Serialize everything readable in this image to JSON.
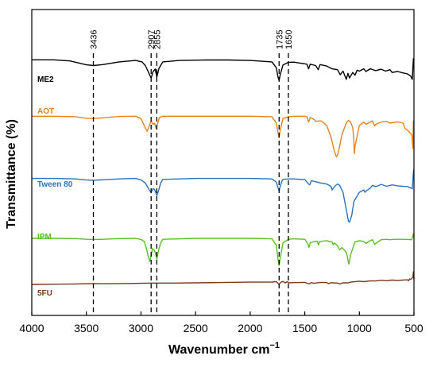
{
  "chart_data": {
    "type": "line",
    "xlabel": "Wavenumber cm",
    "xlabel_superscript": "−1",
    "ylabel": "Transmittance (%)",
    "xlim": [
      4000,
      500
    ],
    "x_reversed": true,
    "y_ticks_shown": false,
    "grid": false,
    "legend": "none; series names printed at left of each trace",
    "x_ticks": [
      {
        "value": 4000,
        "label": "4000"
      },
      {
        "value": 3500,
        "label": "3500"
      },
      {
        "value": 3000,
        "label": "3000"
      },
      {
        "value": 2500,
        "label": "2500"
      },
      {
        "value": 2000,
        "label": "2000"
      },
      {
        "value": 1500,
        "label": "1500"
      },
      {
        "value": 1000,
        "label": "1000"
      },
      {
        "value": 500,
        "label": "500"
      }
    ],
    "reference_lines": [
      {
        "x": 3436,
        "label": "3436"
      },
      {
        "x": 2907,
        "label": "2907"
      },
      {
        "x": 2855,
        "label": "2855"
      },
      {
        "x": 1735,
        "label": "1735"
      },
      {
        "x": 1650,
        "label": "1650"
      }
    ],
    "series": [
      {
        "name": "ME2",
        "color": "#000000",
        "x": [
          4000,
          3800,
          3650,
          3500,
          3436,
          3350,
          3200,
          3050,
          2990,
          2960,
          2930,
          2907,
          2890,
          2870,
          2855,
          2835,
          2800,
          2650,
          2400,
          2200,
          2000,
          1800,
          1760,
          1745,
          1735,
          1725,
          1700,
          1650,
          1600,
          1550,
          1480,
          1465,
          1450,
          1400,
          1377,
          1360,
          1300,
          1250,
          1200,
          1175,
          1150,
          1120,
          1105,
          1090,
          1060,
          1040,
          1020,
          1000,
          960,
          940,
          900,
          850,
          800,
          760,
          720,
          700,
          650,
          600,
          560,
          530,
          515,
          505,
          500
        ],
        "y": [
          97.5,
          97.5,
          97.0,
          95.3,
          95.0,
          95.4,
          96.6,
          97.2,
          96.6,
          95.0,
          92.0,
          89.5,
          92.2,
          93.5,
          90.0,
          93.8,
          96.6,
          97.2,
          97.4,
          97.4,
          97.2,
          96.6,
          94.0,
          90.0,
          88.6,
          91.0,
          95.2,
          96.4,
          96.5,
          96.1,
          95.6,
          93.6,
          95.6,
          95.0,
          93.2,
          95.4,
          94.8,
          93.6,
          93.2,
          91.0,
          92.6,
          89.0,
          91.6,
          89.6,
          92.0,
          90.8,
          93.0,
          92.6,
          93.6,
          92.4,
          93.6,
          92.8,
          93.4,
          92.6,
          93.2,
          92.0,
          92.4,
          91.8,
          91.4,
          90.4,
          89.0,
          98.0,
          97.0
        ]
      },
      {
        "name": "AOT",
        "color": "#e8821e",
        "x": [
          4000,
          3800,
          3600,
          3500,
          3436,
          3350,
          3200,
          3050,
          3000,
          2960,
          2945,
          2930,
          2907,
          2890,
          2875,
          2860,
          2850,
          2830,
          2800,
          2500,
          2000,
          1800,
          1760,
          1745,
          1735,
          1725,
          1700,
          1650,
          1600,
          1500,
          1480,
          1465,
          1450,
          1420,
          1400,
          1350,
          1300,
          1260,
          1230,
          1210,
          1200,
          1180,
          1160,
          1120,
          1100,
          1080,
          1060,
          1050,
          1046,
          1040,
          1000,
          960,
          940,
          900,
          880,
          860,
          850,
          800,
          750,
          720,
          650,
          600,
          580,
          560,
          540,
          520,
          510,
          505,
          500
        ],
        "y": [
          73.0,
          73.0,
          72.8,
          72.1,
          72.0,
          72.3,
          72.9,
          73.0,
          72.0,
          68.0,
          66.5,
          68.0,
          71.0,
          69.5,
          70.0,
          67.5,
          69.5,
          72.5,
          73.0,
          73.0,
          73.0,
          72.8,
          70.0,
          66.0,
          63.6,
          67.0,
          72.0,
          72.8,
          73.0,
          73.0,
          72.8,
          70.4,
          72.4,
          71.8,
          70.8,
          71.0,
          69.0,
          64.0,
          58.0,
          55.4,
          56.0,
          60.0,
          65.0,
          70.0,
          71.2,
          70.4,
          68.0,
          62.0,
          56.8,
          60.0,
          69.0,
          70.5,
          69.5,
          70.5,
          71.0,
          68.8,
          69.5,
          70.5,
          70.8,
          70.0,
          70.6,
          70.0,
          67.5,
          67.0,
          66.0,
          65.0,
          59.0,
          71.0,
          70.0
        ]
      },
      {
        "name": "Tween 80",
        "color": "#2a73c1",
        "x": [
          4000,
          3800,
          3600,
          3500,
          3436,
          3350,
          3200,
          3050,
          3000,
          2960,
          2930,
          2907,
          2890,
          2875,
          2855,
          2840,
          2820,
          2800,
          2500,
          2000,
          1800,
          1760,
          1745,
          1735,
          1725,
          1710,
          1700,
          1650,
          1600,
          1500,
          1465,
          1455,
          1440,
          1400,
          1350,
          1300,
          1260,
          1250,
          1220,
          1200,
          1180,
          1150,
          1130,
          1110,
          1100,
          1090,
          1070,
          1050,
          1000,
          960,
          950,
          940,
          900,
          880,
          850,
          800,
          750,
          700,
          650,
          600,
          560,
          540,
          525,
          515,
          510,
          505,
          500
        ],
        "y": [
          46.0,
          46.0,
          45.8,
          45.3,
          45.2,
          45.4,
          45.8,
          46.0,
          45.4,
          44.0,
          41.5,
          39.8,
          41.6,
          41.2,
          38.6,
          40.5,
          44.0,
          45.6,
          46.0,
          46.0,
          45.8,
          44.4,
          42.0,
          40.6,
          42.6,
          44.8,
          45.6,
          45.8,
          45.8,
          45.5,
          43.6,
          43.2,
          45.0,
          44.6,
          44.0,
          43.6,
          42.6,
          41.0,
          42.8,
          43.6,
          43.0,
          40.0,
          35.0,
          30.0,
          27.5,
          27.0,
          30.0,
          36.0,
          40.0,
          41.0,
          40.0,
          40.5,
          41.8,
          43.0,
          42.4,
          43.4,
          42.6,
          43.2,
          42.8,
          42.6,
          42.5,
          42.0,
          41.8,
          41.5,
          45.0,
          49.0,
          50.0
        ]
      },
      {
        "name": "IPM",
        "color": "#5cbe26",
        "x": [
          4000,
          3800,
          3600,
          3500,
          3436,
          3350,
          3200,
          3050,
          3000,
          2970,
          2950,
          2930,
          2920,
          2907,
          2895,
          2880,
          2870,
          2855,
          2840,
          2820,
          2800,
          2500,
          2000,
          1800,
          1760,
          1745,
          1735,
          1725,
          1700,
          1650,
          1600,
          1500,
          1470,
          1462,
          1450,
          1420,
          1385,
          1375,
          1365,
          1300,
          1250,
          1240,
          1230,
          1200,
          1180,
          1160,
          1150,
          1120,
          1110,
          1100,
          1095,
          1080,
          1040,
          1000,
          960,
          940,
          900,
          880,
          860,
          800,
          750,
          720,
          700,
          650,
          600,
          550,
          520,
          510,
          505,
          500
        ],
        "y": [
          20.0,
          20.0,
          19.9,
          19.6,
          19.5,
          19.6,
          19.9,
          20.0,
          19.5,
          18.6,
          15.6,
          11.5,
          10.0,
          12.5,
          15.6,
          15.0,
          14.0,
          11.0,
          14.6,
          18.0,
          19.6,
          20.0,
          20.0,
          19.8,
          17.0,
          11.0,
          8.2,
          11.4,
          18.0,
          19.6,
          19.8,
          19.6,
          17.4,
          16.0,
          18.0,
          18.6,
          18.8,
          17.0,
          18.6,
          19.0,
          18.4,
          17.2,
          18.0,
          16.8,
          15.0,
          16.0,
          15.5,
          14.0,
          12.0,
          9.5,
          8.8,
          13.0,
          18.4,
          19.0,
          18.6,
          17.8,
          19.0,
          19.4,
          17.4,
          19.4,
          19.6,
          19.4,
          19.5,
          19.6,
          19.6,
          19.5,
          19.4,
          21.0,
          22.0,
          20.0
        ]
      },
      {
        "name": "5FU",
        "color": "#7a3a1e",
        "x": [
          4000,
          3800,
          3600,
          3500,
          3436,
          3300,
          3100,
          3000,
          2907,
          2855,
          2700,
          2500,
          2200,
          2000,
          1800,
          1760,
          1735,
          1720,
          1700,
          1680,
          1660,
          1650,
          1600,
          1500,
          1460,
          1440,
          1420,
          1350,
          1300,
          1280,
          1260,
          1240,
          1200,
          1180,
          1150,
          1100,
          1080,
          1000,
          960,
          900,
          850,
          800,
          750,
          700,
          650,
          600,
          560,
          550,
          540,
          530,
          520,
          510,
          505,
          500
        ],
        "y": [
          0.0,
          0.1,
          0.2,
          0.3,
          0.35,
          0.3,
          0.4,
          0.5,
          0.6,
          0.6,
          0.6,
          0.7,
          0.9,
          1.0,
          1.0,
          1.2,
          0.0,
          0.9,
          1.3,
          0.7,
          1.2,
          0.7,
          0.8,
          0.9,
          0.2,
          0.8,
          0.5,
          0.9,
          0.8,
          0.3,
          0.8,
          0.7,
          0.6,
          0.2,
          0.7,
          0.7,
          1.0,
          1.4,
          1.2,
          1.5,
          1.5,
          1.8,
          1.6,
          1.9,
          1.7,
          1.9,
          2.0,
          1.6,
          2.4,
          2.2,
          2.6,
          3.2,
          5.5,
          2.0
        ]
      }
    ]
  }
}
